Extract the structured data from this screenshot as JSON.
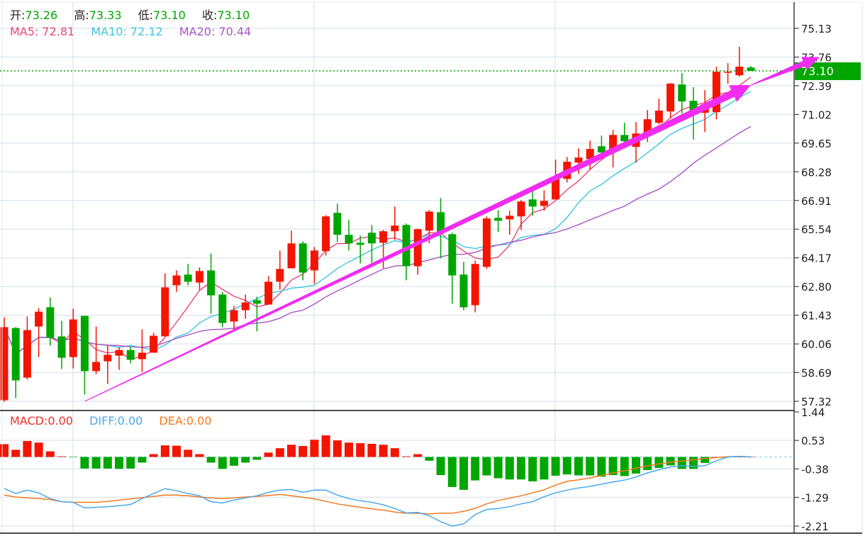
{
  "header": {
    "ohlc": [
      {
        "label": "开:",
        "value": "73.26"
      },
      {
        "label": "高:",
        "value": "73.33"
      },
      {
        "label": "低:",
        "value": "73.10"
      },
      {
        "label": "收:",
        "value": "73.10"
      }
    ],
    "ma": [
      {
        "label": "MA5:",
        "value": "72.81",
        "color": "#e8467c"
      },
      {
        "label": "MA10:",
        "value": "72.12",
        "color": "#3ec6e0"
      },
      {
        "label": "MA20:",
        "value": "70.44",
        "color": "#a855c8"
      }
    ],
    "macd": [
      {
        "label": "MACD:",
        "value": "0.00",
        "color": "#f0302a"
      },
      {
        "label": "DIFF:",
        "value": "0.00",
        "color": "#4aa8f0"
      },
      {
        "label": "DEA:",
        "value": "0.00",
        "color": "#f57a1e"
      }
    ]
  },
  "colors": {
    "up": "#f31500",
    "down": "#00a600",
    "value_green": "#00a600",
    "arrow": "#f02cf0"
  },
  "current_price": "73.10",
  "chart_data": [
    {
      "type": "candlestick",
      "panel": "price",
      "y_ticks": [
        "75.13",
        "73.76",
        "72.39",
        "71.02",
        "69.65",
        "68.28",
        "66.91",
        "65.54",
        "64.17",
        "62.80",
        "61.43",
        "60.06",
        "58.69",
        "57.32"
      ],
      "ylim": [
        57.32,
        75.13
      ],
      "grid": true,
      "ohlc_format": [
        "open",
        "high",
        "low",
        "close"
      ],
      "candles": [
        [
          57.37,
          61.33,
          57.3,
          60.86
        ],
        [
          60.82,
          60.86,
          57.47,
          58.32
        ],
        [
          58.45,
          61.37,
          58.35,
          60.72
        ],
        [
          60.89,
          61.77,
          59.43,
          61.6
        ],
        [
          61.81,
          62.28,
          59.98,
          60.35
        ],
        [
          60.42,
          61.16,
          58.86,
          59.4
        ],
        [
          59.43,
          61.74,
          58.89,
          61.23
        ],
        [
          61.4,
          61.4,
          57.64,
          58.76
        ],
        [
          58.76,
          60.89,
          58.62,
          59.2
        ],
        [
          59.23,
          60.01,
          58.15,
          59.54
        ],
        [
          59.5,
          59.91,
          58.82,
          59.77
        ],
        [
          59.77,
          59.94,
          59.13,
          59.3
        ],
        [
          59.33,
          60.76,
          58.72,
          59.64
        ],
        [
          59.64,
          60.59,
          59.64,
          60.45
        ],
        [
          60.42,
          63.43,
          60.42,
          62.76
        ],
        [
          62.86,
          63.57,
          62.55,
          63.33
        ],
        [
          63.37,
          63.88,
          62.86,
          63.03
        ],
        [
          62.99,
          63.71,
          62.65,
          63.54
        ],
        [
          63.57,
          64.38,
          61.5,
          62.38
        ],
        [
          62.42,
          62.55,
          60.86,
          61.06
        ],
        [
          61.13,
          61.87,
          60.66,
          61.67
        ],
        [
          61.67,
          62.42,
          61.26,
          62.04
        ],
        [
          62.15,
          62.32,
          60.66,
          61.98
        ],
        [
          61.94,
          63.3,
          61.94,
          63.03
        ],
        [
          63.03,
          64.52,
          62.65,
          63.64
        ],
        [
          63.67,
          65.47,
          63.67,
          64.86
        ],
        [
          64.86,
          64.96,
          63.1,
          63.47
        ],
        [
          63.57,
          64.69,
          62.93,
          64.52
        ],
        [
          64.49,
          66.21,
          64.28,
          66.15
        ],
        [
          66.32,
          66.76,
          64.93,
          65.27
        ],
        [
          65.27,
          65.98,
          64.52,
          64.86
        ],
        [
          64.89,
          65.23,
          63.91,
          64.79
        ],
        [
          65.37,
          65.74,
          63.94,
          64.86
        ],
        [
          64.89,
          65.5,
          63.67,
          65.44
        ],
        [
          65.44,
          66.62,
          65.03,
          65.71
        ],
        [
          65.74,
          65.81,
          63.1,
          63.77
        ],
        [
          63.77,
          65.57,
          63.37,
          65.54
        ],
        [
          65.47,
          66.45,
          64.86,
          66.38
        ],
        [
          66.35,
          67.03,
          64.14,
          65.4
        ],
        [
          65.3,
          65.37,
          61.98,
          63.33
        ],
        [
          63.37,
          63.98,
          61.67,
          61.81
        ],
        [
          61.91,
          64.04,
          61.57,
          63.88
        ],
        [
          63.74,
          66.15,
          63.64,
          66.05
        ],
        [
          66.08,
          66.45,
          65.4,
          65.94
        ],
        [
          66.01,
          66.42,
          65.27,
          66.18
        ],
        [
          66.15,
          66.93,
          65.5,
          66.86
        ],
        [
          66.96,
          67.5,
          66.18,
          66.62
        ],
        [
          66.65,
          67.4,
          66.42,
          66.89
        ],
        [
          66.96,
          68.86,
          66.96,
          67.98
        ],
        [
          67.94,
          68.99,
          67.77,
          68.76
        ],
        [
          68.72,
          69.4,
          68.18,
          68.96
        ],
        [
          68.89,
          69.77,
          68.38,
          69.37
        ],
        [
          69.5,
          70.01,
          69.03,
          69.2
        ],
        [
          69.27,
          70.28,
          68.49,
          70.04
        ],
        [
          70.04,
          70.62,
          69.54,
          69.74
        ],
        [
          69.47,
          70.65,
          68.72,
          70.11
        ],
        [
          70.11,
          71.23,
          69.71,
          70.79
        ],
        [
          70.62,
          71.77,
          70.55,
          71.2
        ],
        [
          71.16,
          72.52,
          70.82,
          72.49
        ],
        [
          72.45,
          72.99,
          71.06,
          71.64
        ],
        [
          71.67,
          72.32,
          69.81,
          71.1
        ],
        [
          71.1,
          72.18,
          70.18,
          71.5
        ],
        [
          71.13,
          73.3,
          70.79,
          73.06
        ],
        [
          73.03,
          73.47,
          72.49,
          73.06
        ],
        [
          72.89,
          74.25,
          72.82,
          73.3
        ],
        [
          73.26,
          73.33,
          73.1,
          73.1
        ]
      ],
      "moving_averages": [
        {
          "name": "MA5",
          "period": 5,
          "color": "#e8467c"
        },
        {
          "name": "MA10",
          "period": 10,
          "color": "#3ec6e0"
        },
        {
          "name": "MA20",
          "period": 20,
          "color": "#a855c8"
        }
      ]
    },
    {
      "type": "bar+line",
      "panel": "macd",
      "y_ticks": [
        "1.44",
        "0.53",
        "-0.38",
        "-1.29",
        "-2.21"
      ],
      "ylim": [
        -2.21,
        1.44
      ],
      "macd_hist": [
        0.41,
        0.23,
        0.51,
        0.46,
        0.18,
        0.02,
        -0.01,
        -0.37,
        -0.37,
        -0.37,
        -0.38,
        -0.37,
        -0.18,
        0.09,
        0.37,
        0.36,
        0.23,
        0.09,
        -0.18,
        -0.38,
        -0.28,
        -0.18,
        -0.09,
        0.14,
        0.28,
        0.39,
        0.35,
        0.55,
        0.69,
        0.53,
        0.46,
        0.44,
        0.42,
        0.39,
        0.28,
        0.02,
        0.09,
        -0.12,
        -0.58,
        -0.96,
        -1.05,
        -0.75,
        -0.59,
        -0.68,
        -0.72,
        -0.72,
        -0.78,
        -0.72,
        -0.6,
        -0.56,
        -0.59,
        -0.59,
        -0.63,
        -0.58,
        -0.61,
        -0.53,
        -0.42,
        -0.35,
        -0.27,
        -0.38,
        -0.38,
        -0.19,
        0,
        0,
        0,
        0
      ],
      "diff": [
        -1.01,
        -1.17,
        -1.06,
        -1.15,
        -1.33,
        -1.43,
        -1.45,
        -1.63,
        -1.61,
        -1.59,
        -1.56,
        -1.52,
        -1.33,
        -1.17,
        -1.01,
        -1.08,
        -1.17,
        -1.24,
        -1.43,
        -1.47,
        -1.38,
        -1.31,
        -1.24,
        -1.13,
        -1.06,
        -1.04,
        -1.13,
        -1.06,
        -1.06,
        -1.22,
        -1.33,
        -1.4,
        -1.45,
        -1.53,
        -1.65,
        -1.79,
        -1.77,
        -1.88,
        -2.07,
        -2.21,
        -2.14,
        -1.84,
        -1.68,
        -1.65,
        -1.59,
        -1.5,
        -1.43,
        -1.27,
        -1.15,
        -1.06,
        -0.99,
        -0.94,
        -0.87,
        -0.8,
        -0.74,
        -0.64,
        -0.51,
        -0.41,
        -0.32,
        -0.28,
        -0.3,
        -0.28,
        -0.12,
        0.0,
        0.02,
        0.0
      ],
      "dea": [
        -1.22,
        -1.28,
        -1.31,
        -1.33,
        -1.36,
        -1.43,
        -1.45,
        -1.45,
        -1.45,
        -1.42,
        -1.38,
        -1.34,
        -1.3,
        -1.26,
        -1.22,
        -1.22,
        -1.24,
        -1.28,
        -1.31,
        -1.33,
        -1.31,
        -1.28,
        -1.26,
        -1.23,
        -1.2,
        -1.24,
        -1.29,
        -1.34,
        -1.42,
        -1.5,
        -1.56,
        -1.61,
        -1.66,
        -1.7,
        -1.76,
        -1.8,
        -1.8,
        -1.82,
        -1.8,
        -1.8,
        -1.74,
        -1.64,
        -1.5,
        -1.39,
        -1.32,
        -1.24,
        -1.15,
        -1.05,
        -0.9,
        -0.78,
        -0.73,
        -0.67,
        -0.59,
        -0.51,
        -0.44,
        -0.36,
        -0.28,
        -0.22,
        -0.17,
        -0.13,
        -0.09,
        -0.05,
        -0.02,
        0.01,
        0.01,
        0.0
      ],
      "colors": {
        "diff": "#4aa8f0",
        "dea": "#f57a1e"
      }
    }
  ],
  "annotations": [
    {
      "type": "trend-arrow",
      "from_index": 7,
      "from_price": 57.32,
      "to_index": 65,
      "to_price": 72.42
    },
    {
      "type": "trend-arrow",
      "from_index": 65,
      "from_price": 72.42,
      "to_index": 71,
      "to_price": 73.76
    }
  ]
}
